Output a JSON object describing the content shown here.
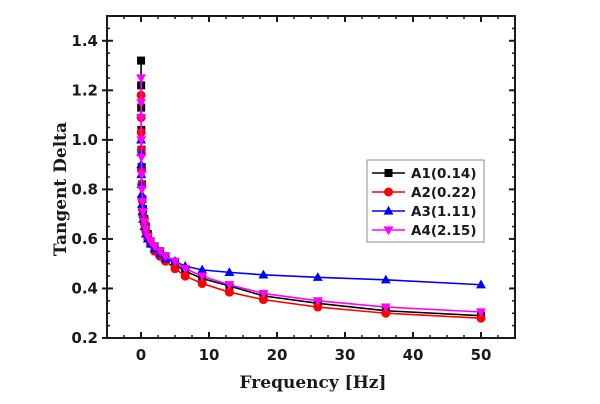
{
  "chart_data": {
    "type": "line",
    "title": "",
    "xlabel": "Frequency [Hz]",
    "ylabel": "Tangent Delta",
    "xlim": [
      -5,
      55
    ],
    "ylim": [
      0.2,
      1.5
    ],
    "xticks": [
      0,
      10,
      20,
      30,
      40,
      50
    ],
    "xtick_labels": [
      "0",
      "10",
      "20",
      "30",
      "40",
      "50"
    ],
    "yticks": [
      0.2,
      0.4,
      0.6,
      0.8,
      1.0,
      1.2,
      1.4
    ],
    "ytick_labels": [
      "0.2",
      "0.4",
      "0.6",
      "0.8",
      "1.0",
      "1.2",
      "1.4"
    ],
    "grid": false,
    "legend_position": "center-right",
    "x": [
      0.01,
      0.02,
      0.03,
      0.05,
      0.07,
      0.1,
      0.14,
      0.2,
      0.3,
      0.5,
      0.7,
      1.0,
      1.4,
      2.0,
      2.8,
      3.6,
      5.0,
      6.5,
      9.0,
      13.0,
      18.0,
      26.0,
      36.0,
      50.0
    ],
    "series": [
      {
        "name": "A1(0.14)",
        "color": "#000000",
        "marker": "square",
        "values": [
          1.32,
          1.22,
          1.13,
          1.04,
          0.96,
          0.89,
          0.82,
          0.76,
          0.72,
          0.68,
          0.65,
          0.62,
          0.59,
          0.57,
          0.55,
          0.53,
          0.5,
          0.47,
          0.44,
          0.41,
          0.37,
          0.34,
          0.31,
          0.29
        ]
      },
      {
        "name": "A2(0.22)",
        "color": "#ff0000",
        "marker": "circle",
        "values": [
          1.18,
          1.09,
          1.03,
          0.96,
          0.88,
          0.82,
          0.76,
          0.72,
          0.69,
          0.66,
          0.63,
          0.6,
          0.58,
          0.55,
          0.53,
          0.51,
          0.48,
          0.45,
          0.42,
          0.385,
          0.355,
          0.325,
          0.3,
          0.28
        ]
      },
      {
        "name": "A3(1.11)",
        "color": "#0000ff",
        "marker": "triangle-up",
        "values": [
          1.0,
          0.95,
          0.9,
          0.86,
          0.82,
          0.78,
          0.74,
          0.71,
          0.68,
          0.65,
          0.62,
          0.6,
          0.58,
          0.56,
          0.54,
          0.52,
          0.51,
          0.49,
          0.475,
          0.465,
          0.455,
          0.445,
          0.435,
          0.415
        ]
      },
      {
        "name": "A4(2.15)",
        "color": "#ff00ff",
        "marker": "triangle-down",
        "values": [
          1.25,
          1.15,
          1.09,
          1.0,
          0.93,
          0.86,
          0.8,
          0.75,
          0.71,
          0.67,
          0.64,
          0.61,
          0.59,
          0.57,
          0.55,
          0.53,
          0.51,
          0.48,
          0.45,
          0.415,
          0.38,
          0.35,
          0.325,
          0.305
        ]
      }
    ]
  }
}
